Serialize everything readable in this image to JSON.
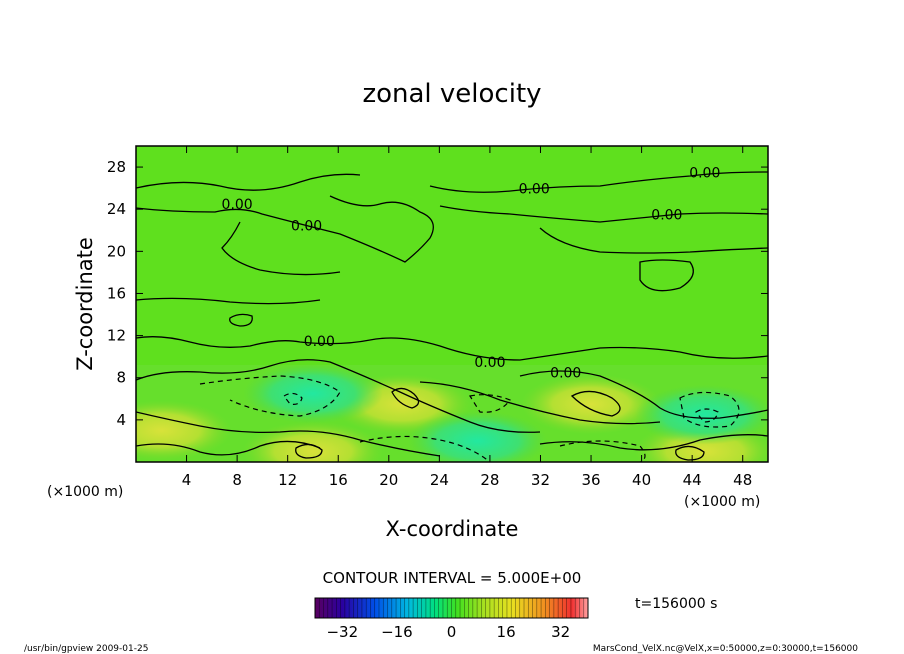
{
  "chart_data": {
    "type": "heatmap",
    "title": "zonal velocity",
    "xlabel": "X-coordinate",
    "ylabel": "Z-coordinate",
    "x_unit_left": "(×1000 m)",
    "x_unit_right": "(×1000 m)",
    "xlim": [
      0,
      50
    ],
    "ylim": [
      0,
      30
    ],
    "x_ticks": [
      4,
      8,
      12,
      16,
      20,
      24,
      28,
      32,
      36,
      40,
      44,
      48
    ],
    "y_ticks": [
      4,
      8,
      12,
      16,
      20,
      24,
      28
    ],
    "contour_interval_text": "CONTOUR INTERVAL = 5.000E+00",
    "time_text": "t=156000 s",
    "contour_labels": [
      {
        "text": "0.00",
        "x": 8,
        "y": 24
      },
      {
        "text": "0.00",
        "x": 13.5,
        "y": 22
      },
      {
        "text": "0.00",
        "x": 31.5,
        "y": 25.5
      },
      {
        "text": "0.00",
        "x": 45,
        "y": 27
      },
      {
        "text": "0.00",
        "x": 42,
        "y": 23
      },
      {
        "text": "0.00",
        "x": 14.5,
        "y": 11
      },
      {
        "text": "0.00",
        "x": 28,
        "y": 9
      },
      {
        "text": "0.00",
        "x": 34,
        "y": 8
      }
    ],
    "colorbar": {
      "min": -40,
      "max": 40,
      "ticks": [
        -32,
        -16,
        0,
        16,
        32
      ],
      "tick_labels": [
        "−32",
        "−16",
        "0",
        "16",
        "32"
      ]
    },
    "field_features": [
      {
        "x": 21,
        "y": 5.5,
        "value": 12
      },
      {
        "x": 36,
        "y": 5.5,
        "value": 14
      },
      {
        "x": 14,
        "y": 1,
        "value": 10
      },
      {
        "x": 45,
        "y": 1,
        "value": 9
      },
      {
        "x": 14,
        "y": 6.5,
        "value": -8
      },
      {
        "x": 45,
        "y": 4.5,
        "value": -9
      },
      {
        "x": 2,
        "y": 3,
        "value": 5
      },
      {
        "x": 27,
        "y": 2,
        "value": -5
      }
    ]
  },
  "footer": {
    "left": "/usr/bin/gpview   2009-01-25",
    "right": "MarsCond_VelX.nc@VelX,x=0:50000,z=0:30000,t=156000"
  }
}
